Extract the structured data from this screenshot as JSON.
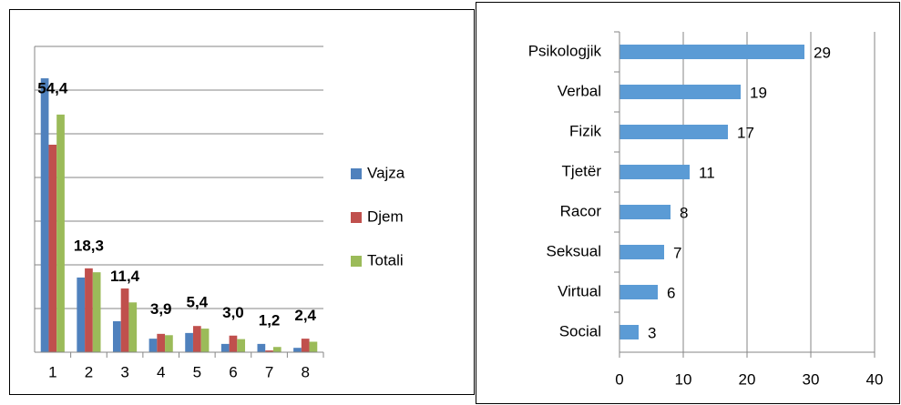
{
  "chart_data": [
    {
      "type": "bar",
      "categories": [
        "1",
        "2",
        "3",
        "4",
        "5",
        "6",
        "7",
        "8"
      ],
      "series": [
        {
          "name": "Vajza",
          "color": "#4f81bd",
          "values": [
            62.7,
            17.1,
            7.1,
            3.1,
            4.4,
            1.9,
            1.9,
            1.0
          ]
        },
        {
          "name": "Djem",
          "color": "#c0504d",
          "values": [
            47.5,
            19.2,
            14.6,
            4.2,
            6.0,
            3.8,
            0.4,
            3.1
          ]
        },
        {
          "name": "Totali",
          "color": "#9bbb59",
          "values": [
            54.4,
            18.3,
            11.4,
            3.9,
            5.4,
            3.0,
            1.2,
            2.4
          ],
          "value_labels": [
            "54,4",
            "18,3",
            "11,4",
            "3,9",
            "5,4",
            "3,0",
            "1,2",
            "2,4"
          ]
        }
      ],
      "ylim": [
        0,
        70
      ],
      "yticks": [
        0,
        10,
        20,
        30,
        40,
        50,
        60,
        70
      ],
      "grid": true,
      "legend": "right"
    },
    {
      "type": "hbar",
      "categories": [
        "Psikologjik",
        "Verbal",
        "Fizik",
        "Tjetër",
        "Racor",
        "Seksual",
        "Virtual",
        "Social"
      ],
      "values": [
        29,
        19,
        17,
        11,
        8,
        7,
        6,
        3
      ],
      "color": "#5b9bd5",
      "xlim": [
        0,
        40
      ],
      "xticks": [
        0,
        10,
        20,
        30,
        40
      ],
      "grid": true
    }
  ]
}
